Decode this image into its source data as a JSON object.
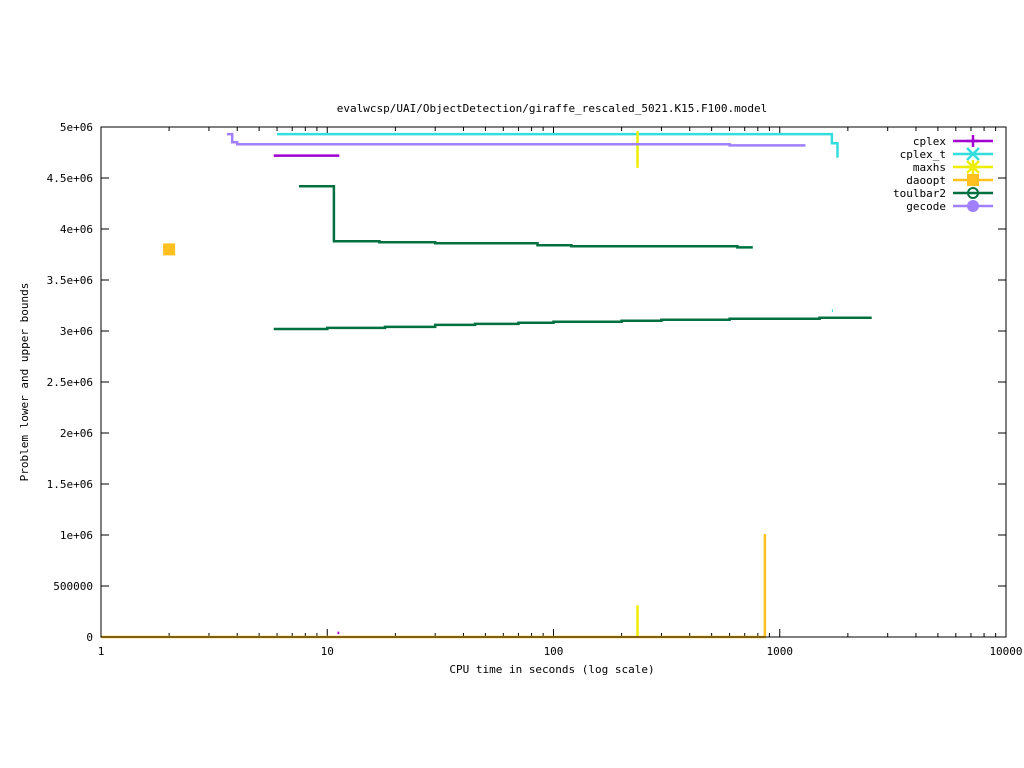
{
  "chart_data": {
    "type": "line",
    "title": "evalwcsp/UAI/ObjectDetection/giraffe_rescaled_5021.K15.F100.model",
    "xlabel": "CPU time in seconds (log scale)",
    "ylabel": "Problem lower and upper bounds",
    "x_scale": "log",
    "xlim": [
      1,
      10000
    ],
    "ylim": [
      0,
      5000000
    ],
    "x_ticks": [
      1,
      10,
      100,
      1000,
      10000
    ],
    "x_tick_labels": [
      "1",
      "10",
      "100",
      "1000",
      "10000"
    ],
    "y_ticks": [
      0,
      500000,
      1000000,
      1500000,
      2000000,
      2500000,
      3000000,
      3500000,
      4000000,
      4500000,
      5000000
    ],
    "y_tick_labels": [
      "0",
      "500000",
      "1e+06",
      "1.5e+06",
      "2e+06",
      "2.5e+06",
      "3e+06",
      "3.5e+06",
      "4e+06",
      "4.5e+06",
      "5e+06"
    ],
    "grid": false,
    "legend_position": "top-right",
    "series": [
      {
        "name": "cplex",
        "color": "#a000d0",
        "marker": "plus",
        "segments": [
          [
            [
              5.8,
              4720000
            ],
            [
              11.3,
              4720000
            ]
          ],
          [
            [
              11.1,
              40000
            ],
            [
              11.3,
              40000
            ]
          ]
        ]
      },
      {
        "name": "cplex_t",
        "color": "#33dddd",
        "marker": "cross",
        "segments": [
          [
            [
              6.0,
              4930000
            ],
            [
              1700,
              4930000
            ],
            [
              1700,
              4840000
            ],
            [
              1800,
              4840000
            ],
            [
              1800,
              4700000
            ]
          ],
          [
            [
              1700,
              3200000
            ],
            [
              1720,
              3200000
            ]
          ]
        ]
      },
      {
        "name": "maxhs",
        "color": "#eeee00",
        "marker": "asterisk",
        "segments": [
          [
            [
              235,
              4960000
            ],
            [
              235,
              4600000
            ]
          ],
          [
            [
              235,
              310000
            ],
            [
              235,
              0
            ]
          ]
        ]
      },
      {
        "name": "daoopt",
        "color": "#ffc020",
        "marker": "square",
        "segments": [
          [
            [
              1,
              0
            ],
            [
              860,
              0
            ],
            [
              860,
              1010000
            ],
            [
              860,
              0
            ]
          ],
          [
            [
              2.0,
              3800000
            ],
            [
              2.0,
              3800000
            ]
          ]
        ]
      },
      {
        "name": "toulbar2",
        "color": "#007040",
        "marker": "circle",
        "segments": [
          [
            [
              7.5,
              4420000
            ],
            [
              10.7,
              4420000
            ],
            [
              10.7,
              3880000
            ],
            [
              17,
              3880000
            ],
            [
              17,
              3870000
            ],
            [
              30,
              3870000
            ],
            [
              30,
              3860000
            ],
            [
              85,
              3860000
            ],
            [
              85,
              3840000
            ],
            [
              120,
              3840000
            ],
            [
              120,
              3830000
            ],
            [
              650,
              3830000
            ],
            [
              650,
              3820000
            ],
            [
              760,
              3820000
            ]
          ],
          [
            [
              5.8,
              3020000
            ],
            [
              10,
              3020000
            ],
            [
              10,
              3030000
            ],
            [
              18,
              3030000
            ],
            [
              18,
              3040000
            ],
            [
              30,
              3040000
            ],
            [
              30,
              3060000
            ],
            [
              45,
              3060000
            ],
            [
              45,
              3070000
            ],
            [
              70,
              3070000
            ],
            [
              70,
              3080000
            ],
            [
              100,
              3080000
            ],
            [
              100,
              3090000
            ],
            [
              200,
              3090000
            ],
            [
              200,
              3100000
            ],
            [
              300,
              3100000
            ],
            [
              300,
              3110000
            ],
            [
              600,
              3110000
            ],
            [
              600,
              3120000
            ],
            [
              1500,
              3120000
            ],
            [
              1500,
              3130000
            ],
            [
              2550,
              3130000
            ]
          ]
        ]
      },
      {
        "name": "gecode",
        "color": "#a080ff",
        "marker": "dot",
        "segments": [
          [
            [
              3.6,
              4930000
            ],
            [
              3.8,
              4930000
            ],
            [
              3.8,
              4850000
            ],
            [
              4.0,
              4850000
            ],
            [
              4.0,
              4830000
            ],
            [
              600,
              4830000
            ],
            [
              600,
              4820000
            ],
            [
              1300,
              4820000
            ]
          ]
        ]
      }
    ]
  }
}
